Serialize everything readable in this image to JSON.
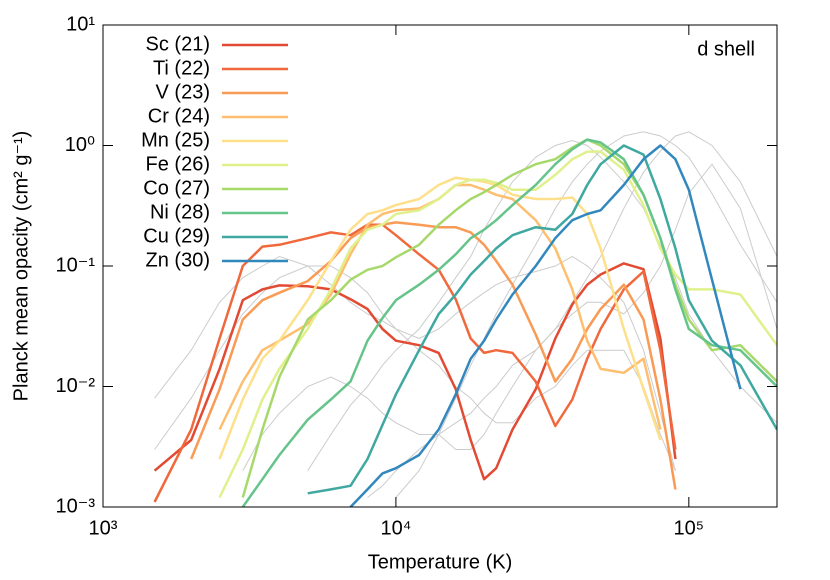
{
  "chart_data": {
    "type": "line",
    "xscale": "log",
    "yscale": "log",
    "xlabel": "Temperature (K)",
    "ylabel": "Planck mean opacity (cm² g⁻¹)",
    "annotation": "d shell",
    "legend": "top-left",
    "xlim": [
      1000,
      200000
    ],
    "ylim": [
      0.001,
      10
    ],
    "xticks": [
      {
        "value": 1000,
        "label": "10³"
      },
      {
        "value": 10000,
        "label": "10⁴"
      },
      {
        "value": 100000,
        "label": "10⁵"
      }
    ],
    "yticks": [
      {
        "value": 0.001,
        "label": "10⁻³"
      },
      {
        "value": 0.01,
        "label": "10⁻²"
      },
      {
        "value": 0.1,
        "label": "10⁻¹"
      },
      {
        "value": 1,
        "label": "10⁰"
      },
      {
        "value": 10,
        "label": "10¹"
      }
    ],
    "x": [
      1500,
      2000,
      2500,
      3000,
      3500,
      4000,
      5000,
      6000,
      7000,
      8000,
      9000,
      10000,
      12000,
      14000,
      16000,
      18000,
      20000,
      22000,
      25000,
      30000,
      35000,
      40000,
      45000,
      50000,
      60000,
      70000,
      80000,
      90000,
      100000,
      120000,
      150000,
      200000
    ],
    "background_color": "#cccccc",
    "background_lines": [
      {
        "values": [
          0.003,
          0.008,
          0.02,
          0.04,
          0.06,
          0.08,
          0.1,
          0.1,
          0.08,
          0.06,
          0.04,
          0.03,
          0.02,
          0.015,
          0.01,
          0.008,
          0.006,
          0.005,
          0.005,
          0.008,
          0.01,
          0.015,
          0.02,
          0.02,
          0.02,
          0.01,
          0.004,
          0.002,
          null,
          null,
          null,
          null
        ]
      },
      {
        "values": [
          null,
          null,
          null,
          null,
          null,
          null,
          null,
          null,
          null,
          null,
          null,
          0.0012,
          0.002,
          0.004,
          0.008,
          0.015,
          0.025,
          0.04,
          0.07,
          0.15,
          0.3,
          0.5,
          0.7,
          0.9,
          1.2,
          1.3,
          1.2,
          1.0,
          0.8,
          0.4,
          0.15,
          0.05
        ]
      },
      {
        "values": [
          0.008,
          0.02,
          0.05,
          0.08,
          0.1,
          0.12,
          0.1,
          0.07,
          0.05,
          0.04,
          0.035,
          0.03,
          0.025,
          0.03,
          0.04,
          0.05,
          0.06,
          0.07,
          0.08,
          0.09,
          0.1,
          0.12,
          0.1,
          0.08,
          0.05,
          0.02,
          0.006,
          0.002,
          null,
          null,
          null,
          null
        ]
      },
      {
        "values": [
          null,
          null,
          null,
          null,
          null,
          null,
          0.002,
          0.004,
          0.007,
          0.01,
          0.015,
          0.02,
          0.03,
          0.05,
          0.08,
          0.12,
          0.2,
          0.3,
          0.5,
          0.8,
          1.0,
          1.1,
          1.0,
          0.8,
          0.5,
          0.3,
          0.15,
          0.08,
          0.04,
          0.02,
          0.01,
          0.005
        ]
      },
      {
        "values": [
          null,
          null,
          null,
          0.002,
          0.004,
          0.006,
          0.01,
          0.012,
          0.01,
          0.008,
          0.006,
          0.005,
          0.004,
          0.004,
          0.005,
          0.006,
          0.008,
          0.01,
          0.015,
          0.02,
          0.03,
          0.05,
          0.08,
          0.12,
          0.3,
          0.6,
          0.9,
          1.2,
          1.3,
          1.0,
          0.5,
          0.12
        ]
      },
      {
        "values": [
          null,
          null,
          null,
          null,
          null,
          null,
          null,
          null,
          null,
          0.0012,
          0.0015,
          0.002,
          0.003,
          0.004,
          0.003,
          0.003,
          0.004,
          0.006,
          0.01,
          0.02,
          0.03,
          0.04,
          0.05,
          0.05,
          0.04,
          0.06,
          0.1,
          0.2,
          0.4,
          0.7,
          0.3,
          0.03
        ]
      }
    ],
    "series": [
      {
        "name": "Sc (21)",
        "color": "#e34a33",
        "values": [
          0.002,
          0.0036,
          0.014,
          0.052,
          0.064,
          0.069,
          0.068,
          0.064,
          0.053,
          0.044,
          0.03,
          0.024,
          0.022,
          0.019,
          0.0095,
          0.0036,
          0.0017,
          0.0021,
          0.0044,
          0.0095,
          0.025,
          0.048,
          0.07,
          0.085,
          0.105,
          0.094,
          0.025,
          0.0025,
          null,
          null,
          null,
          null
        ]
      },
      {
        "name": "Ti (22)",
        "color": "#f0693d",
        "values": [
          0.0011,
          0.0044,
          0.025,
          0.1,
          0.145,
          0.15,
          0.17,
          0.19,
          0.18,
          0.22,
          0.22,
          0.18,
          0.125,
          0.093,
          0.053,
          0.025,
          0.019,
          0.02,
          0.019,
          0.011,
          0.0047,
          0.0078,
          0.017,
          0.03,
          0.064,
          0.09,
          0.02,
          0.003,
          null,
          null,
          null,
          null
        ]
      },
      {
        "name": "V (23)",
        "color": "#f99a55",
        "values": [
          null,
          0.0025,
          0.0095,
          0.036,
          0.052,
          0.06,
          0.075,
          0.11,
          0.17,
          0.21,
          0.22,
          0.23,
          0.22,
          0.21,
          0.21,
          0.19,
          0.15,
          0.11,
          0.07,
          0.027,
          0.011,
          0.017,
          0.03,
          0.044,
          0.07,
          0.036,
          0.0078,
          0.0014,
          null,
          null,
          null,
          null
        ]
      },
      {
        "name": "Cr (24)",
        "color": "#fdbf6f",
        "values": [
          null,
          null,
          0.0044,
          0.011,
          0.02,
          0.024,
          0.033,
          0.058,
          0.125,
          0.22,
          0.27,
          0.29,
          0.3,
          0.36,
          0.47,
          0.47,
          0.43,
          0.39,
          0.36,
          0.24,
          0.14,
          0.064,
          0.024,
          0.014,
          0.013,
          0.017,
          0.0044,
          null,
          null,
          null,
          null,
          null
        ]
      },
      {
        "name": "Mn (25)",
        "color": "#fee08b",
        "values": [
          null,
          null,
          0.0025,
          0.0078,
          0.017,
          0.024,
          0.052,
          0.11,
          0.2,
          0.27,
          0.29,
          0.32,
          0.36,
          0.47,
          0.54,
          0.52,
          0.5,
          0.47,
          0.39,
          0.36,
          0.36,
          0.37,
          0.27,
          0.14,
          0.03,
          0.0095,
          0.0036,
          null,
          null,
          null,
          null,
          null
        ]
      },
      {
        "name": "Fe (26)",
        "color": "#e0f08c",
        "values": [
          null,
          null,
          0.0012,
          0.003,
          0.0078,
          0.014,
          0.03,
          0.064,
          0.14,
          0.2,
          0.22,
          0.27,
          0.29,
          0.36,
          0.47,
          0.52,
          0.52,
          0.49,
          0.43,
          0.43,
          0.57,
          0.77,
          0.89,
          0.89,
          0.63,
          0.32,
          0.14,
          0.085,
          0.064,
          0.064,
          0.058,
          0.022
        ]
      },
      {
        "name": "Co (27)",
        "color": "#a6d96a",
        "values": [
          null,
          null,
          null,
          0.0012,
          0.0044,
          0.012,
          0.036,
          0.052,
          0.077,
          0.093,
          0.1,
          0.118,
          0.15,
          0.22,
          0.29,
          0.36,
          0.41,
          0.47,
          0.57,
          0.7,
          0.77,
          0.96,
          1.12,
          1.0,
          0.7,
          0.39,
          0.17,
          0.07,
          0.036,
          0.02,
          0.022,
          0.011
        ]
      },
      {
        "name": "Ni (28)",
        "color": "#66c48a",
        "values": [
          null,
          null,
          null,
          0.001,
          0.0017,
          0.0027,
          0.0053,
          0.0078,
          0.011,
          0.024,
          0.037,
          0.052,
          0.07,
          0.093,
          0.125,
          0.17,
          0.2,
          0.24,
          0.32,
          0.47,
          0.7,
          0.93,
          1.12,
          1.06,
          0.77,
          0.39,
          0.17,
          0.064,
          0.03,
          0.022,
          0.02,
          0.01
        ]
      },
      {
        "name": "Cu (29)",
        "color": "#3fa8a0",
        "values": [
          null,
          null,
          null,
          null,
          null,
          null,
          0.0013,
          0.0014,
          0.0015,
          0.0025,
          0.0048,
          0.0086,
          0.02,
          0.04,
          0.058,
          0.085,
          0.11,
          0.14,
          0.18,
          0.21,
          0.2,
          0.27,
          0.47,
          0.7,
          1.0,
          0.84,
          0.36,
          0.14,
          0.052,
          0.024,
          0.015,
          0.0044
        ]
      },
      {
        "name": "Zn (30)",
        "color": "#3288bd",
        "values": [
          null,
          null,
          null,
          null,
          null,
          null,
          null,
          null,
          0.001,
          0.0014,
          0.0019,
          0.0021,
          0.0027,
          0.0044,
          0.0086,
          0.017,
          0.024,
          0.036,
          0.058,
          0.1,
          0.17,
          0.24,
          0.27,
          0.29,
          0.47,
          0.77,
          1.0,
          0.77,
          0.43,
          0.077,
          0.0095,
          null
        ]
      }
    ]
  }
}
